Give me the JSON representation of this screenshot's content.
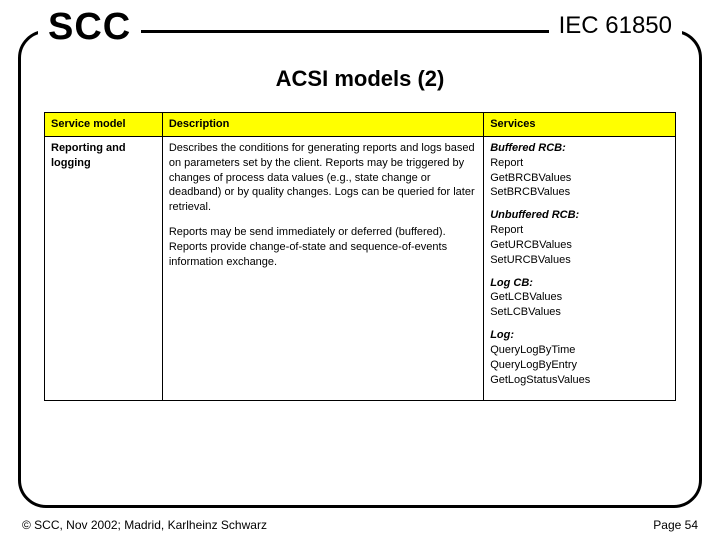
{
  "header": {
    "logo": "SCC",
    "standard": "IEC 61850"
  },
  "title": "ACSI models (2)",
  "table": {
    "header_bg": "#ffff00",
    "columns": [
      "Service model",
      "Description",
      "Services"
    ],
    "row": {
      "model": "Reporting and logging",
      "description_p1": "Describes the conditions for generating reports and logs based on parameters set by the client. Reports may be triggered by changes of process data values (e.g., state change or deadband) or by quality changes. Logs can be queried for later retrieval.",
      "description_p2": "Reports may be send immediately or deferred (buffered). Reports provide change-of-state and sequence-of-events information exchange.",
      "services": [
        {
          "title": "Buffered RCB:",
          "items": [
            "Report",
            "GetBRCBValues",
            "SetBRCBValues"
          ]
        },
        {
          "title": "Unbuffered RCB:",
          "items": [
            "Report",
            "GetURCBValues",
            "SetURCBValues"
          ]
        },
        {
          "title": "Log CB:",
          "items": [
            "GetLCBValues",
            "SetLCBValues"
          ]
        },
        {
          "title": "Log:",
          "items": [
            "QueryLogByTime",
            "QueryLogByEntry",
            "GetLogStatusValues"
          ]
        }
      ]
    }
  },
  "footer": {
    "copyright": "© SCC, Nov 2002; Madrid, Karlheinz Schwarz",
    "page": "Page 54"
  }
}
